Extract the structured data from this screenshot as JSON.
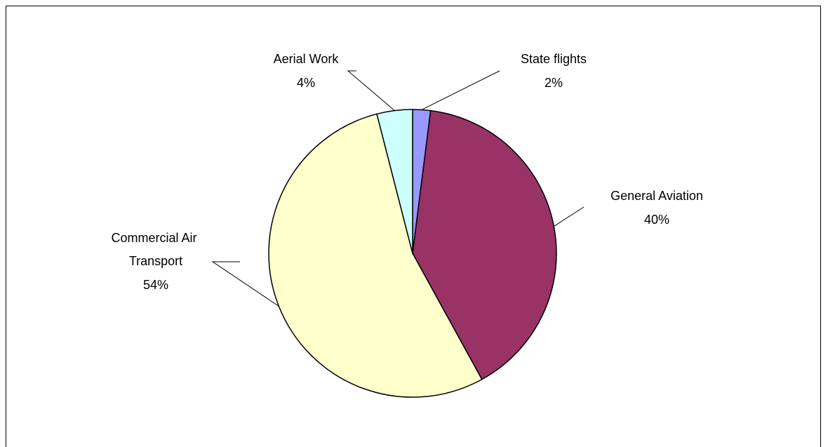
{
  "chart_data": {
    "type": "pie",
    "title": "",
    "slices": [
      {
        "label": "State flights",
        "lines": [
          "State flights"
        ],
        "value": 2,
        "value_text": "2%",
        "color": "#9999ff"
      },
      {
        "label": "General Aviation",
        "lines": [
          "General Aviation"
        ],
        "value": 40,
        "value_text": "40%",
        "color": "#993366"
      },
      {
        "label": "Commercial Air Transport",
        "lines": [
          "Commercial Air",
          "Transport"
        ],
        "value": 54,
        "value_text": "54%",
        "color": "#ffffcc"
      },
      {
        "label": "Aerial Work",
        "lines": [
          "Aerial Work"
        ],
        "value": 4,
        "value_text": "4%",
        "color": "#ccffff"
      }
    ],
    "start_angle_deg": 0,
    "direction": "clockwise",
    "legend": "none",
    "data_labels": "outside with leader lines"
  }
}
